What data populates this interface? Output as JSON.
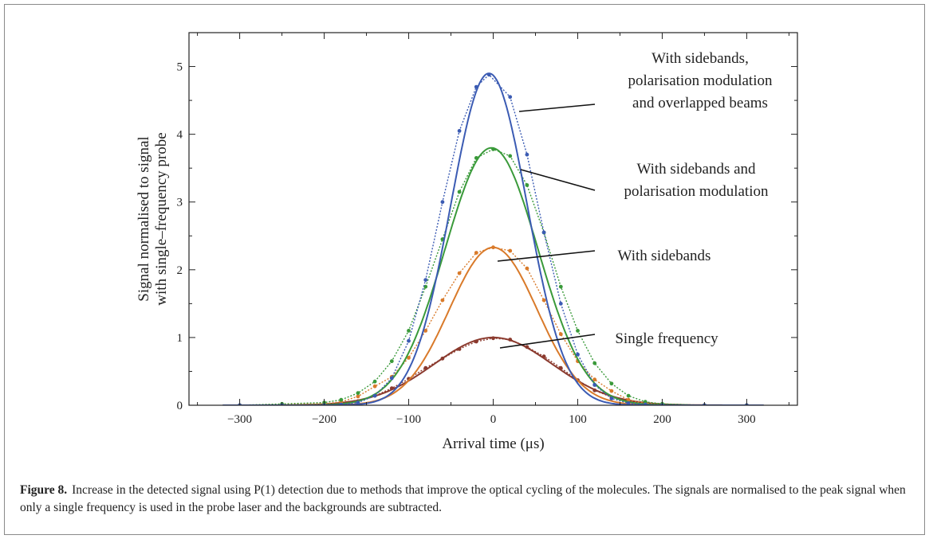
{
  "chart_data": {
    "type": "line",
    "xlabel": "Arrival time (μs)",
    "ylabel_lines": [
      "Signal normalised to signal",
      "with single–frequency probe"
    ],
    "xlim": [
      -360,
      360
    ],
    "ylim": [
      0,
      5.5
    ],
    "xticks": [
      -300,
      -200,
      -100,
      0,
      100,
      200,
      300
    ],
    "yticks": [
      0,
      1,
      2,
      3,
      4,
      5
    ],
    "grid": false,
    "series": [
      {
        "name": "Single frequency",
        "color": "#8b3a2e",
        "peak": 1.0,
        "center": 0,
        "sigma": 70,
        "x": [
          -300,
          -250,
          -200,
          -180,
          -160,
          -140,
          -120,
          -100,
          -80,
          -60,
          -40,
          -20,
          0,
          20,
          40,
          60,
          80,
          100,
          120,
          140,
          160,
          180,
          200,
          250,
          300
        ],
        "y": [
          0.0,
          0.01,
          0.02,
          0.04,
          0.06,
          0.14,
          0.25,
          0.39,
          0.55,
          0.69,
          0.83,
          0.94,
          0.99,
          0.97,
          0.86,
          0.72,
          0.55,
          0.37,
          0.22,
          0.12,
          0.06,
          0.03,
          0.01,
          0.0,
          0.0
        ]
      },
      {
        "name": "With sidebands",
        "color": "#d97a2a",
        "peak": 2.33,
        "center": 0,
        "sigma": 52,
        "x": [
          -300,
          -250,
          -200,
          -180,
          -160,
          -140,
          -120,
          -100,
          -80,
          -60,
          -40,
          -20,
          0,
          20,
          40,
          60,
          80,
          100,
          120,
          140,
          160,
          180,
          200,
          250,
          300
        ],
        "y": [
          0.0,
          0.01,
          0.02,
          0.05,
          0.13,
          0.28,
          0.42,
          0.7,
          1.1,
          1.55,
          1.95,
          2.25,
          2.33,
          2.28,
          2.02,
          1.55,
          1.05,
          0.65,
          0.38,
          0.21,
          0.08,
          0.03,
          0.01,
          0.0,
          0.0
        ]
      },
      {
        "name": "With sidebands and polarisation modulation",
        "color": "#3a9a3a",
        "peak": 3.8,
        "center": -2,
        "sigma": 55,
        "x": [
          -300,
          -250,
          -200,
          -180,
          -160,
          -140,
          -120,
          -100,
          -80,
          -60,
          -40,
          -20,
          0,
          20,
          40,
          60,
          80,
          100,
          120,
          140,
          160,
          180,
          200,
          250,
          300
        ],
        "y": [
          0.0,
          0.02,
          0.04,
          0.08,
          0.18,
          0.35,
          0.65,
          1.1,
          1.75,
          2.45,
          3.15,
          3.65,
          3.78,
          3.68,
          3.25,
          2.55,
          1.75,
          1.1,
          0.62,
          0.32,
          0.14,
          0.05,
          0.02,
          0.0,
          0.0
        ]
      },
      {
        "name": "With sidebands, polarisation modulation and overlapped beams",
        "color": "#3b5bb3",
        "peak": 4.9,
        "center": -5,
        "sigma": 45,
        "x": [
          -300,
          -250,
          -200,
          -180,
          -160,
          -140,
          -120,
          -100,
          -80,
          -60,
          -40,
          -20,
          -5,
          20,
          40,
          60,
          80,
          100,
          120,
          140,
          160,
          180,
          200,
          250,
          300
        ],
        "y": [
          0.0,
          0.0,
          0.0,
          0.01,
          0.04,
          0.14,
          0.4,
          0.95,
          1.85,
          3.0,
          4.05,
          4.7,
          4.88,
          4.55,
          3.7,
          2.55,
          1.5,
          0.75,
          0.3,
          0.1,
          0.03,
          0.01,
          0.0,
          0.0,
          0.0
        ]
      }
    ],
    "annotations": [
      {
        "lines": [
          "With sidebands,",
          "polarisation modulation",
          "and overlapped beams"
        ],
        "x": 25,
        "y": 4.3
      },
      {
        "lines": [
          "With sidebands and",
          "polarisation modulation"
        ],
        "x": 25,
        "y": 3.75
      },
      {
        "lines": [
          "With sidebands"
        ],
        "x": 18,
        "y": 2.2
      },
      {
        "lines": [
          "Single frequency"
        ],
        "x": 20,
        "y": 0.98
      }
    ]
  },
  "caption": {
    "label": "Figure 8.",
    "text": "Increase in the detected signal using P(1) detection due to methods that improve the optical cycling of the molecules. The signals are normalised to the peak signal when only a single frequency is used in the probe laser and the backgrounds are subtracted."
  }
}
